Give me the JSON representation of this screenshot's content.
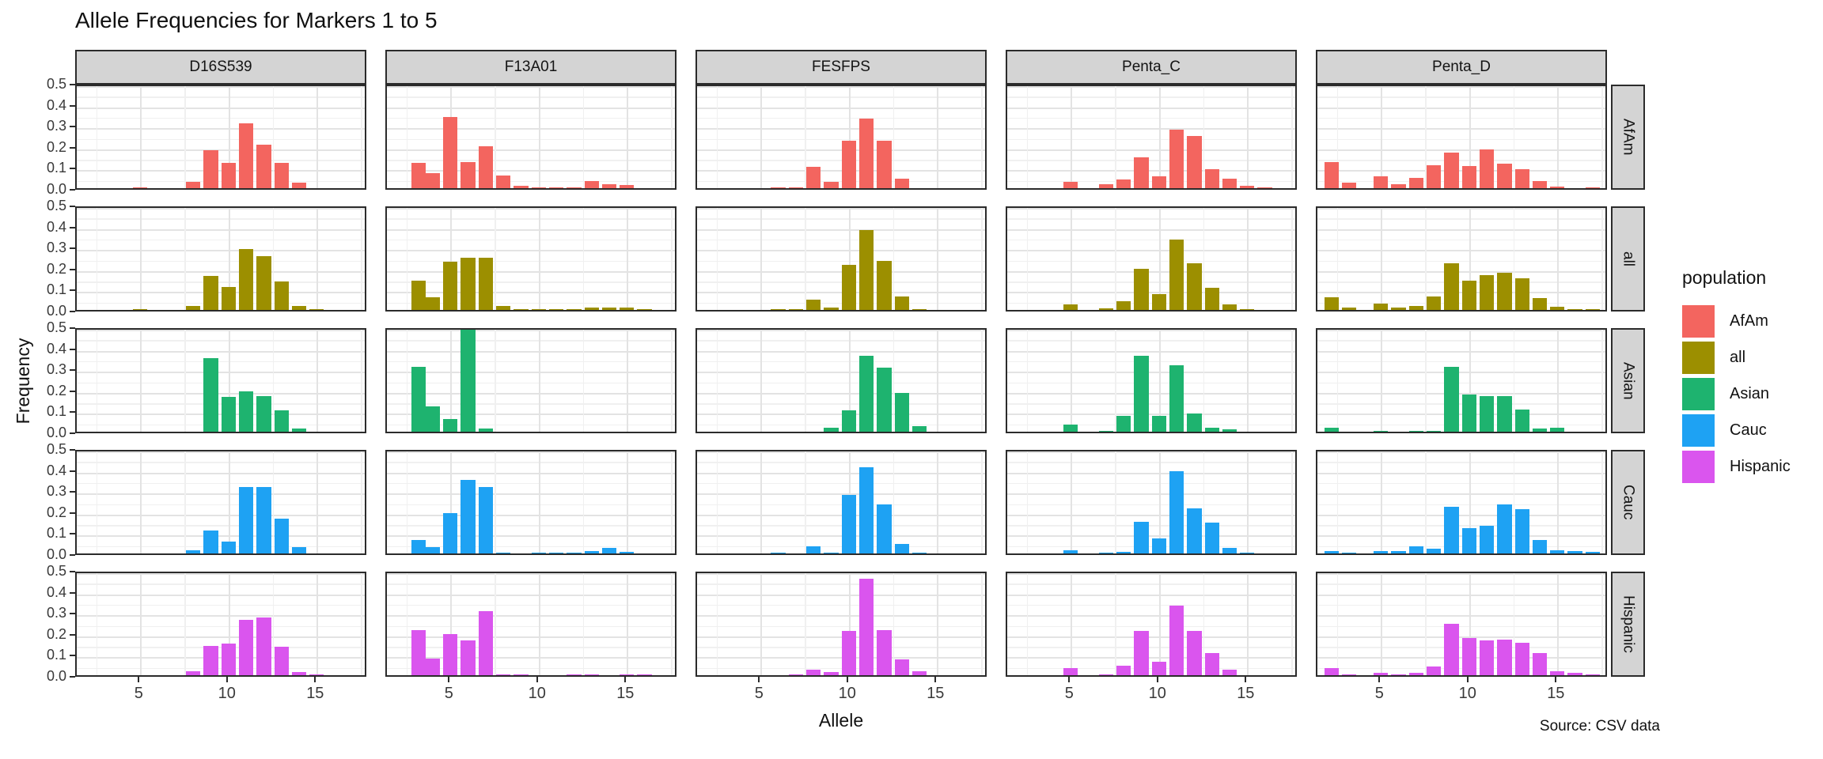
{
  "title": "Allele Frequencies for Markers 1 to 5",
  "source_note": "Source: CSV data",
  "axes": {
    "x_label": "Allele",
    "y_label": "Frequency",
    "x_ticks": [
      5,
      10,
      15
    ],
    "y_ticks": [
      "0.5",
      "0.4",
      "0.3",
      "0.2",
      "0.1",
      "0.0"
    ]
  },
  "legend": {
    "title": "population",
    "entries": [
      {
        "label": "AfAm",
        "color": "#f3655f"
      },
      {
        "label": "all",
        "color": "#9c8f00"
      },
      {
        "label": "Asian",
        "color": "#1eb36f"
      },
      {
        "label": "Cauc",
        "color": "#1ea2f3"
      },
      {
        "label": "Hispanic",
        "color": "#da55ee"
      }
    ]
  },
  "chart_data": {
    "type": "bar",
    "facet_columns": [
      "D16S539",
      "F13A01",
      "FESFPS",
      "Penta_C",
      "Penta_D"
    ],
    "facet_rows": [
      "AfAm",
      "all",
      "Asian",
      "Cauc",
      "Hispanic"
    ],
    "x_domain": [
      1.4,
      17.9
    ],
    "y_domain": [
      0,
      0.5
    ],
    "grid": {
      "x_major": [
        5,
        10,
        15
      ],
      "x_minor": [
        2.5,
        7.5,
        12.5,
        17.5
      ],
      "y_major_step": 0.1,
      "y_minor_step": 0.05
    },
    "panels": [
      {
        "population": "AfAm",
        "marker": "D16S539",
        "bars": [
          [
            5,
            0.005
          ],
          [
            8,
            0.03
          ],
          [
            9,
            0.18
          ],
          [
            10,
            0.12
          ],
          [
            11,
            0.31
          ],
          [
            12,
            0.205
          ],
          [
            13,
            0.12
          ],
          [
            14,
            0.025
          ]
        ]
      },
      {
        "population": "AfAm",
        "marker": "F13A01",
        "bars": [
          [
            3.2,
            0.12
          ],
          [
            4,
            0.07
          ],
          [
            5,
            0.34
          ],
          [
            6,
            0.125
          ],
          [
            7,
            0.2
          ],
          [
            8,
            0.06
          ],
          [
            9,
            0.012
          ],
          [
            10,
            0.005
          ],
          [
            11,
            0.005
          ],
          [
            12,
            0.005
          ],
          [
            13,
            0.035
          ],
          [
            14,
            0.02
          ],
          [
            15,
            0.015
          ]
        ]
      },
      {
        "population": "AfAm",
        "marker": "FESFPS",
        "bars": [
          [
            6,
            0.003
          ],
          [
            7,
            0.003
          ],
          [
            8,
            0.1
          ],
          [
            9,
            0.03
          ],
          [
            10,
            0.225
          ],
          [
            11,
            0.33
          ],
          [
            12,
            0.225
          ],
          [
            13,
            0.045
          ]
        ]
      },
      {
        "population": "AfAm",
        "marker": "Penta_C",
        "bars": [
          [
            5,
            0.03
          ],
          [
            7,
            0.02
          ],
          [
            8,
            0.04
          ],
          [
            9,
            0.145
          ],
          [
            10,
            0.055
          ],
          [
            11,
            0.28
          ],
          [
            12,
            0.25
          ],
          [
            13,
            0.09
          ],
          [
            14,
            0.045
          ],
          [
            15,
            0.01
          ],
          [
            16,
            0.005
          ]
        ]
      },
      {
        "population": "AfAm",
        "marker": "Penta_D",
        "bars": [
          [
            2.2,
            0.125
          ],
          [
            3.2,
            0.025
          ],
          [
            5,
            0.055
          ],
          [
            6,
            0.02
          ],
          [
            7,
            0.05
          ],
          [
            8,
            0.11
          ],
          [
            9,
            0.17
          ],
          [
            10,
            0.105
          ],
          [
            11,
            0.185
          ],
          [
            12,
            0.115
          ],
          [
            13,
            0.09
          ],
          [
            14,
            0.035
          ],
          [
            15,
            0.006
          ],
          [
            17,
            0.005
          ]
        ]
      },
      {
        "population": "all",
        "marker": "D16S539",
        "bars": [
          [
            5,
            0.002
          ],
          [
            8,
            0.02
          ],
          [
            9,
            0.16
          ],
          [
            10,
            0.11
          ],
          [
            11,
            0.29
          ],
          [
            12,
            0.255
          ],
          [
            13,
            0.135
          ],
          [
            14,
            0.02
          ],
          [
            15,
            0.003
          ]
        ]
      },
      {
        "population": "all",
        "marker": "F13A01",
        "bars": [
          [
            3.2,
            0.14
          ],
          [
            4,
            0.06
          ],
          [
            5,
            0.23
          ],
          [
            6,
            0.25
          ],
          [
            7,
            0.25
          ],
          [
            8,
            0.02
          ],
          [
            9,
            0.003
          ],
          [
            10,
            0.003
          ],
          [
            11,
            0.003
          ],
          [
            12,
            0.005
          ],
          [
            13,
            0.013
          ],
          [
            14,
            0.01
          ],
          [
            15,
            0.013
          ],
          [
            16,
            0.005
          ]
        ]
      },
      {
        "population": "all",
        "marker": "FESFPS",
        "bars": [
          [
            6,
            0.002
          ],
          [
            7,
            0.002
          ],
          [
            8,
            0.05
          ],
          [
            9,
            0.012
          ],
          [
            10,
            0.215
          ],
          [
            11,
            0.38
          ],
          [
            12,
            0.235
          ],
          [
            13,
            0.065
          ],
          [
            14,
            0.005
          ]
        ]
      },
      {
        "population": "all",
        "marker": "Penta_C",
        "bars": [
          [
            5,
            0.025
          ],
          [
            7,
            0.008
          ],
          [
            8,
            0.04
          ],
          [
            9,
            0.195
          ],
          [
            10,
            0.075
          ],
          [
            11,
            0.335
          ],
          [
            12,
            0.22
          ],
          [
            13,
            0.105
          ],
          [
            14,
            0.025
          ],
          [
            15,
            0.005
          ]
        ]
      },
      {
        "population": "all",
        "marker": "Penta_D",
        "bars": [
          [
            2.2,
            0.06
          ],
          [
            3.2,
            0.01
          ],
          [
            5,
            0.03
          ],
          [
            6,
            0.01
          ],
          [
            7,
            0.02
          ],
          [
            8,
            0.065
          ],
          [
            9,
            0.22
          ],
          [
            10,
            0.14
          ],
          [
            11,
            0.165
          ],
          [
            12,
            0.175
          ],
          [
            13,
            0.15
          ],
          [
            14,
            0.055
          ],
          [
            15,
            0.015
          ],
          [
            16,
            0.005
          ],
          [
            17,
            0.003
          ]
        ]
      },
      {
        "population": "Asian",
        "marker": "D16S539",
        "bars": [
          [
            9,
            0.35
          ],
          [
            10,
            0.165
          ],
          [
            11,
            0.19
          ],
          [
            12,
            0.17
          ],
          [
            13,
            0.1
          ],
          [
            14,
            0.015
          ]
        ]
      },
      {
        "population": "Asian",
        "marker": "F13A01",
        "bars": [
          [
            3.2,
            0.31
          ],
          [
            4,
            0.12
          ],
          [
            5,
            0.06
          ],
          [
            6,
            0.49
          ],
          [
            7,
            0.015
          ]
        ]
      },
      {
        "population": "Asian",
        "marker": "FESFPS",
        "bars": [
          [
            9,
            0.02
          ],
          [
            10,
            0.1
          ],
          [
            11,
            0.36
          ],
          [
            12,
            0.305
          ],
          [
            13,
            0.185
          ],
          [
            14,
            0.025
          ]
        ]
      },
      {
        "population": "Asian",
        "marker": "Penta_C",
        "bars": [
          [
            5,
            0.035
          ],
          [
            7,
            0.005
          ],
          [
            8,
            0.075
          ],
          [
            9,
            0.36
          ],
          [
            10,
            0.075
          ],
          [
            11,
            0.315
          ],
          [
            12,
            0.085
          ],
          [
            13,
            0.02
          ],
          [
            14,
            0.01
          ]
        ]
      },
      {
        "population": "Asian",
        "marker": "Penta_D",
        "bars": [
          [
            2.2,
            0.02
          ],
          [
            5,
            0.005
          ],
          [
            7,
            0.003
          ],
          [
            8,
            0.005
          ],
          [
            9,
            0.31
          ],
          [
            10,
            0.175
          ],
          [
            11,
            0.17
          ],
          [
            12,
            0.17
          ],
          [
            13,
            0.105
          ],
          [
            14,
            0.015
          ],
          [
            15,
            0.02
          ]
        ]
      },
      {
        "population": "Cauc",
        "marker": "D16S539",
        "bars": [
          [
            8,
            0.015
          ],
          [
            9,
            0.11
          ],
          [
            10,
            0.055
          ],
          [
            11,
            0.315
          ],
          [
            12,
            0.315
          ],
          [
            13,
            0.165
          ],
          [
            14,
            0.03
          ]
        ]
      },
      {
        "population": "Cauc",
        "marker": "F13A01",
        "bars": [
          [
            3.2,
            0.065
          ],
          [
            4,
            0.03
          ],
          [
            5,
            0.19
          ],
          [
            6,
            0.35
          ],
          [
            7,
            0.315
          ],
          [
            8,
            0.005
          ],
          [
            10,
            0.003
          ],
          [
            11,
            0.003
          ],
          [
            12,
            0.003
          ],
          [
            13,
            0.012
          ],
          [
            14,
            0.025
          ],
          [
            15,
            0.008
          ]
        ]
      },
      {
        "population": "Cauc",
        "marker": "FESFPS",
        "bars": [
          [
            6,
            0.005
          ],
          [
            8,
            0.035
          ],
          [
            9,
            0.005
          ],
          [
            10,
            0.28
          ],
          [
            11,
            0.41
          ],
          [
            12,
            0.235
          ],
          [
            13,
            0.045
          ],
          [
            14,
            0.003
          ]
        ]
      },
      {
        "population": "Cauc",
        "marker": "Penta_C",
        "bars": [
          [
            5,
            0.015
          ],
          [
            7,
            0.003
          ],
          [
            8,
            0.008
          ],
          [
            9,
            0.15
          ],
          [
            10,
            0.07
          ],
          [
            11,
            0.39
          ],
          [
            12,
            0.215
          ],
          [
            13,
            0.145
          ],
          [
            14,
            0.025
          ],
          [
            15,
            0.005
          ]
        ]
      },
      {
        "population": "Cauc",
        "marker": "Penta_D",
        "bars": [
          [
            2.2,
            0.01
          ],
          [
            3.2,
            0.003
          ],
          [
            5,
            0.01
          ],
          [
            6,
            0.012
          ],
          [
            7,
            0.035
          ],
          [
            8,
            0.022
          ],
          [
            9,
            0.22
          ],
          [
            10,
            0.12
          ],
          [
            11,
            0.13
          ],
          [
            12,
            0.235
          ],
          [
            13,
            0.21
          ],
          [
            14,
            0.065
          ],
          [
            15,
            0.015
          ],
          [
            16,
            0.01
          ],
          [
            17,
            0.008
          ]
        ]
      },
      {
        "population": "Hispanic",
        "marker": "D16S539",
        "bars": [
          [
            8,
            0.02
          ],
          [
            9,
            0.14
          ],
          [
            10,
            0.15
          ],
          [
            11,
            0.265
          ],
          [
            12,
            0.275
          ],
          [
            13,
            0.135
          ],
          [
            14,
            0.015
          ],
          [
            15,
            0.003
          ]
        ]
      },
      {
        "population": "Hispanic",
        "marker": "F13A01",
        "bars": [
          [
            3.2,
            0.215
          ],
          [
            4,
            0.08
          ],
          [
            5,
            0.195
          ],
          [
            6,
            0.165
          ],
          [
            7,
            0.305
          ],
          [
            8,
            0.005
          ],
          [
            9,
            0.005
          ],
          [
            12,
            0.005
          ],
          [
            13,
            0.005
          ],
          [
            15,
            0.005
          ],
          [
            16,
            0.005
          ]
        ]
      },
      {
        "population": "Hispanic",
        "marker": "FESFPS",
        "bars": [
          [
            7,
            0.005
          ],
          [
            8,
            0.025
          ],
          [
            9,
            0.015
          ],
          [
            10,
            0.21
          ],
          [
            11,
            0.46
          ],
          [
            12,
            0.215
          ],
          [
            13,
            0.075
          ],
          [
            14,
            0.02
          ]
        ]
      },
      {
        "population": "Hispanic",
        "marker": "Penta_C",
        "bars": [
          [
            5,
            0.035
          ],
          [
            7,
            0.005
          ],
          [
            8,
            0.045
          ],
          [
            9,
            0.21
          ],
          [
            10,
            0.065
          ],
          [
            11,
            0.33
          ],
          [
            12,
            0.21
          ],
          [
            13,
            0.105
          ],
          [
            14,
            0.025
          ]
        ]
      },
      {
        "population": "Hispanic",
        "marker": "Penta_D",
        "bars": [
          [
            2.2,
            0.035
          ],
          [
            3.2,
            0.005
          ],
          [
            5,
            0.01
          ],
          [
            6,
            0.005
          ],
          [
            7,
            0.01
          ],
          [
            8,
            0.04
          ],
          [
            9,
            0.245
          ],
          [
            10,
            0.175
          ],
          [
            11,
            0.165
          ],
          [
            12,
            0.17
          ],
          [
            13,
            0.155
          ],
          [
            14,
            0.105
          ],
          [
            15,
            0.02
          ],
          [
            16,
            0.01
          ],
          [
            17,
            0.005
          ]
        ]
      }
    ]
  }
}
